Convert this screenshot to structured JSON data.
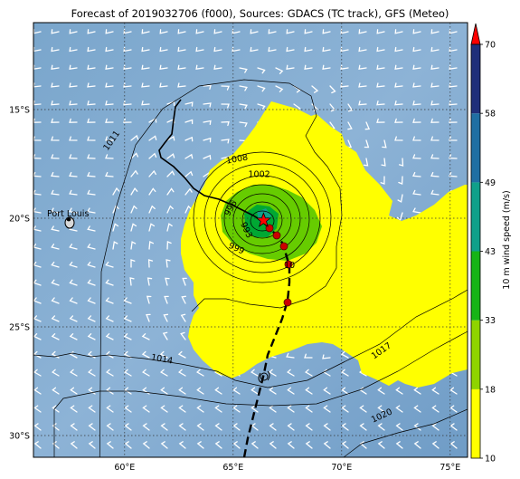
{
  "title": "Forecast of 2019032706 (f000), Sources: GDACS (TC track), GFS (Meteo)",
  "map": {
    "lon_range": [
      55.8,
      75.8
    ],
    "lat_range": [
      -31.0,
      -11.0
    ],
    "lon_ticks": [
      {
        "value": 60,
        "label": "60°E"
      },
      {
        "value": 65,
        "label": "65°E"
      },
      {
        "value": 70,
        "label": "70°E"
      },
      {
        "value": 75,
        "label": "75°E"
      }
    ],
    "lat_ticks": [
      {
        "value": -15,
        "label": "15°S"
      },
      {
        "value": -20,
        "label": "20°S"
      },
      {
        "value": -25,
        "label": "25°S"
      },
      {
        "value": -30,
        "label": "30°S"
      }
    ],
    "place": {
      "name": "Port Louis",
      "lon": 57.5,
      "lat": -20.16
    },
    "current_position": {
      "lon": 66.4,
      "lat": -20.1
    },
    "isobar_labels": [
      {
        "text": "1011",
        "lon": 59.5,
        "lat": -16.5,
        "rotate": -55
      },
      {
        "text": "1008",
        "lon": 65.2,
        "lat": -17.4,
        "rotate": -10
      },
      {
        "text": "1002",
        "lon": 66.2,
        "lat": -18.1,
        "rotate": 0
      },
      {
        "text": "996",
        "lon": 65.0,
        "lat": -19.6,
        "rotate": -60
      },
      {
        "text": "993",
        "lon": 65.5,
        "lat": -20.6,
        "rotate": 65
      },
      {
        "text": "999",
        "lon": 65.1,
        "lat": -21.5,
        "rotate": 25
      },
      {
        "text": "10",
        "lon": 67.6,
        "lat": -22.3,
        "rotate": 0
      },
      {
        "text": "1014",
        "lon": 61.7,
        "lat": -26.6,
        "rotate": 10
      },
      {
        "text": "1017",
        "lon": 71.9,
        "lat": -26.2,
        "rotate": -35
      },
      {
        "text": "1020",
        "lon": 71.9,
        "lat": -29.2,
        "rotate": -25
      }
    ]
  },
  "colorbar": {
    "label": "10 m wind speed (m/s)",
    "ticks": [
      "10",
      "18",
      "33",
      "43",
      "49",
      "58",
      "70"
    ],
    "colors": [
      "#ffff00",
      "#8fd400",
      "#16b416",
      "#10a08a",
      "#1f6fa3",
      "#1f2f7a"
    ]
  },
  "colors": {
    "ocean": "#7ea9cf",
    "wind18": "#ffff00",
    "wind33": "#66cc00",
    "wind43": "#00a833",
    "track_past": "#000000",
    "forecast_dot": "#cc0000",
    "marker": "#ff0000"
  }
}
